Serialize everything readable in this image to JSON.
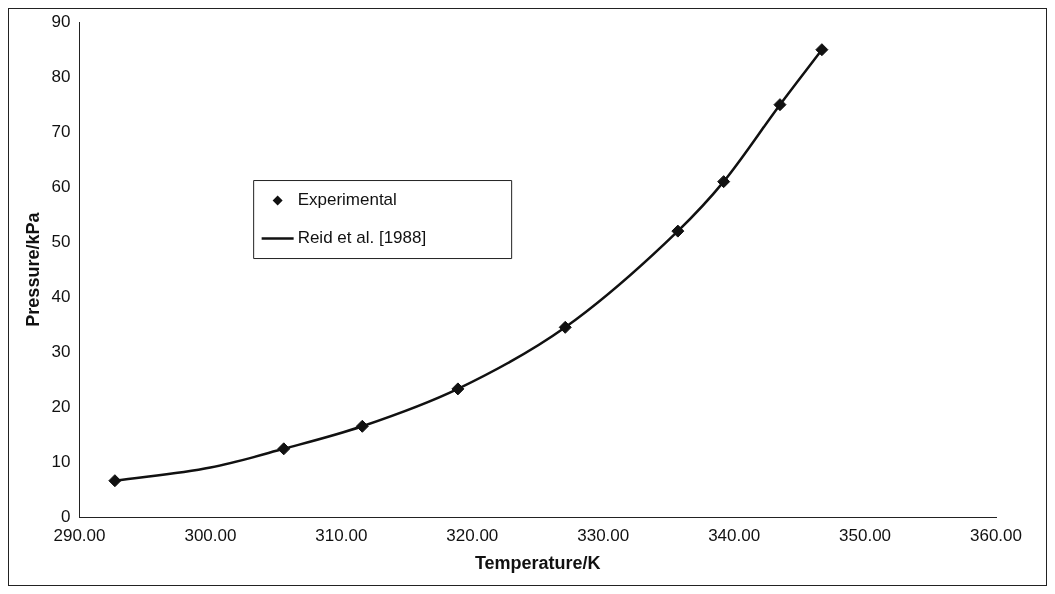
{
  "chart_data": {
    "type": "scatter",
    "xlabel": "Temperature/K",
    "ylabel": "Pressure/kPa",
    "xlim": [
      290,
      360
    ],
    "ylim": [
      0,
      90
    ],
    "xticks": [
      {
        "value": 290,
        "label": "290.00"
      },
      {
        "value": 300,
        "label": "300.00"
      },
      {
        "value": 310,
        "label": "310.00"
      },
      {
        "value": 320,
        "label": "320.00"
      },
      {
        "value": 330,
        "label": "330.00"
      },
      {
        "value": 340,
        "label": "340.00"
      },
      {
        "value": 350,
        "label": "350.00"
      },
      {
        "value": 360,
        "label": "360.00"
      }
    ],
    "yticks": [
      0,
      10,
      20,
      30,
      40,
      50,
      60,
      70,
      80,
      90
    ],
    "grid": false,
    "legend": "top left",
    "series": [
      {
        "name": "Experimental",
        "marker": "diamond",
        "color": "#111111",
        "x": [
          292.7,
          305.6,
          311.6,
          318.9,
          327.1,
          335.7,
          339.2,
          343.5,
          346.7
        ],
        "values": [
          6.6,
          12.4,
          16.5,
          23.3,
          34.5,
          52,
          61,
          75,
          85
        ]
      },
      {
        "name": "Reid et al. [1988]",
        "type": "line",
        "marker": "none",
        "line_style": "solid",
        "color": "#111111",
        "x": [
          292.7,
          300,
          305.6,
          311.6,
          318.9,
          327.1,
          335.7,
          339.2,
          343.5,
          346.7
        ],
        "values": [
          6.6,
          9,
          12.4,
          16.5,
          23.3,
          34.5,
          52,
          61,
          75,
          85
        ]
      }
    ]
  }
}
